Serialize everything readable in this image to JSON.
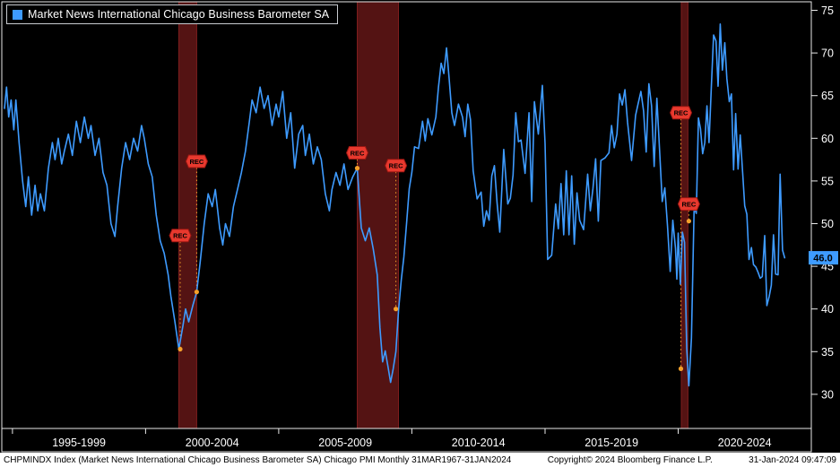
{
  "colors": {
    "background": "#000000",
    "line": "#3e9bff",
    "recession_band": "#541313",
    "recession_edge": "#7e1d1d",
    "flag_fill": "#e8392e",
    "flag_stroke": "#9c1712",
    "flag_text": "#000000",
    "dot": "#f5a02a",
    "dotted_line": "#f5a02a",
    "axis_text": "#ffffff",
    "frame": "#e8e8e8",
    "badge_bg": "#3e9bff",
    "badge_text": "#000000",
    "footer_bg": "#ffffff",
    "footer_text": "#000000"
  },
  "legend": {
    "label": "Market News International Chicago Business Barometer SA",
    "swatch_color": "#3e9bff"
  },
  "y_axis": {
    "ticks": [
      30,
      35,
      40,
      45,
      50,
      55,
      60,
      65,
      70,
      75
    ]
  },
  "x_axis": {
    "bins": [
      "1995-1999",
      "2000-2004",
      "2005-2009",
      "2010-2014",
      "2015-2019",
      "2020-2024"
    ],
    "bin_centers": [
      1997.5,
      2002.5,
      2007.5,
      2012.5,
      2017.5,
      2022.5
    ],
    "tick_years": [
      1995,
      2000,
      2005,
      2010,
      2015,
      2020,
      2025
    ]
  },
  "last_value": {
    "label": "46.0",
    "value": 46.0
  },
  "annotation_label": "REC",
  "footer": {
    "left": "CHPMINDX Index (Market News International Chicago Business Barometer SA) Chicago PMI  Monthly 31MAR1967-31JAN2024",
    "center": "Copyright© 2024 Bloomberg Finance L.P.",
    "right": "31-Jan-2024 09:47:09"
  },
  "chart_data": {
    "type": "line",
    "title": "Market News International Chicago Business Barometer SA",
    "xlabel": "",
    "ylabel": "",
    "xlim": [
      1994.6,
      2025.0
    ],
    "ylim": [
      26,
      76
    ],
    "grid": false,
    "legend_position": "top-left",
    "series": [
      {
        "name": "CHPMINDX Index (Chicago PMI, SA, monthly)",
        "color": "#3e9bff",
        "points": [
          [
            1994.7,
            63.5
          ],
          [
            1994.78,
            66
          ],
          [
            1994.86,
            62.5
          ],
          [
            1994.95,
            64.5
          ],
          [
            1995.05,
            61
          ],
          [
            1995.13,
            64.5
          ],
          [
            1995.25,
            59.5
          ],
          [
            1995.38,
            55
          ],
          [
            1995.5,
            52
          ],
          [
            1995.6,
            55.5
          ],
          [
            1995.72,
            51
          ],
          [
            1995.85,
            54.5
          ],
          [
            1995.95,
            51.5
          ],
          [
            1996.05,
            53.5
          ],
          [
            1996.2,
            51.5
          ],
          [
            1996.35,
            56.5
          ],
          [
            1996.5,
            59.5
          ],
          [
            1996.6,
            57.5
          ],
          [
            1996.72,
            60
          ],
          [
            1996.85,
            57
          ],
          [
            1996.95,
            58.5
          ],
          [
            1997.1,
            60.5
          ],
          [
            1997.25,
            58
          ],
          [
            1997.4,
            62
          ],
          [
            1997.55,
            59.5
          ],
          [
            1997.7,
            62.5
          ],
          [
            1997.85,
            60
          ],
          [
            1997.95,
            61.5
          ],
          [
            1998.1,
            58
          ],
          [
            1998.25,
            60
          ],
          [
            1998.4,
            56
          ],
          [
            1998.55,
            54.5
          ],
          [
            1998.7,
            50
          ],
          [
            1998.85,
            48.5
          ],
          [
            1998.95,
            52
          ],
          [
            1999.1,
            56.5
          ],
          [
            1999.25,
            59.5
          ],
          [
            1999.4,
            57.5
          ],
          [
            1999.55,
            60
          ],
          [
            1999.7,
            58.5
          ],
          [
            1999.85,
            61.5
          ],
          [
            1999.95,
            60
          ],
          [
            2000.1,
            57
          ],
          [
            2000.25,
            55.5
          ],
          [
            2000.4,
            51
          ],
          [
            2000.55,
            48
          ],
          [
            2000.7,
            46.5
          ],
          [
            2000.85,
            44
          ],
          [
            2000.95,
            41.5
          ],
          [
            2001.1,
            38.5
          ],
          [
            2001.25,
            35.3
          ],
          [
            2001.4,
            38
          ],
          [
            2001.5,
            40
          ],
          [
            2001.62,
            38.5
          ],
          [
            2001.78,
            40.5
          ],
          [
            2001.92,
            42
          ],
          [
            2002.05,
            45.5
          ],
          [
            2002.2,
            50
          ],
          [
            2002.35,
            53.5
          ],
          [
            2002.5,
            52
          ],
          [
            2002.62,
            54
          ],
          [
            2002.78,
            49.5
          ],
          [
            2002.9,
            47.5
          ],
          [
            2003.0,
            50
          ],
          [
            2003.15,
            48.5
          ],
          [
            2003.3,
            52
          ],
          [
            2003.45,
            54
          ],
          [
            2003.6,
            56
          ],
          [
            2003.75,
            58.5
          ],
          [
            2003.9,
            62
          ],
          [
            2004.0,
            64.5
          ],
          [
            2004.15,
            63
          ],
          [
            2004.3,
            66
          ],
          [
            2004.45,
            63.5
          ],
          [
            2004.6,
            65
          ],
          [
            2004.75,
            61.5
          ],
          [
            2004.9,
            64
          ],
          [
            2005.0,
            62.5
          ],
          [
            2005.15,
            65.5
          ],
          [
            2005.3,
            60
          ],
          [
            2005.45,
            63
          ],
          [
            2005.6,
            56.5
          ],
          [
            2005.75,
            60.5
          ],
          [
            2005.9,
            61.5
          ],
          [
            2006.0,
            58
          ],
          [
            2006.15,
            60.5
          ],
          [
            2006.3,
            57
          ],
          [
            2006.45,
            59
          ],
          [
            2006.6,
            57.5
          ],
          [
            2006.75,
            53.5
          ],
          [
            2006.9,
            51.5
          ],
          [
            2007.0,
            54
          ],
          [
            2007.15,
            56
          ],
          [
            2007.3,
            54.5
          ],
          [
            2007.45,
            57
          ],
          [
            2007.6,
            54
          ],
          [
            2007.78,
            55.5
          ],
          [
            2007.95,
            56.5
          ],
          [
            2008.1,
            49.5
          ],
          [
            2008.25,
            48
          ],
          [
            2008.4,
            49.5
          ],
          [
            2008.55,
            47
          ],
          [
            2008.7,
            44
          ],
          [
            2008.8,
            37.8
          ],
          [
            2008.9,
            33.8
          ],
          [
            2009.0,
            35.1
          ],
          [
            2009.1,
            33.3
          ],
          [
            2009.2,
            31.4
          ],
          [
            2009.3,
            33
          ],
          [
            2009.4,
            35
          ],
          [
            2009.5,
            39.9
          ],
          [
            2009.6,
            43.4
          ],
          [
            2009.7,
            46.1
          ],
          [
            2009.8,
            50
          ],
          [
            2009.9,
            54.1
          ],
          [
            2010.0,
            56
          ],
          [
            2010.1,
            59
          ],
          [
            2010.25,
            58.8
          ],
          [
            2010.4,
            62
          ],
          [
            2010.5,
            59.7
          ],
          [
            2010.6,
            62.3
          ],
          [
            2010.75,
            60.4
          ],
          [
            2010.9,
            62.5
          ],
          [
            2011.0,
            66
          ],
          [
            2011.1,
            68.8
          ],
          [
            2011.2,
            67.6
          ],
          [
            2011.3,
            70.6
          ],
          [
            2011.4,
            67
          ],
          [
            2011.5,
            63
          ],
          [
            2011.6,
            61.5
          ],
          [
            2011.75,
            64
          ],
          [
            2011.9,
            62.5
          ],
          [
            2012.0,
            60.2
          ],
          [
            2012.1,
            64
          ],
          [
            2012.2,
            62.2
          ],
          [
            2012.3,
            56.2
          ],
          [
            2012.45,
            52.9
          ],
          [
            2012.6,
            53.7
          ],
          [
            2012.7,
            49.7
          ],
          [
            2012.8,
            51.5
          ],
          [
            2012.9,
            50.4
          ],
          [
            2013.0,
            55.6
          ],
          [
            2013.1,
            56.8
          ],
          [
            2013.2,
            52.4
          ],
          [
            2013.3,
            49
          ],
          [
            2013.45,
            58.7
          ],
          [
            2013.6,
            52.3
          ],
          [
            2013.7,
            53
          ],
          [
            2013.8,
            55.7
          ],
          [
            2013.9,
            63
          ],
          [
            2014.0,
            59.6
          ],
          [
            2014.1,
            59.8
          ],
          [
            2014.25,
            55.9
          ],
          [
            2014.4,
            63
          ],
          [
            2014.5,
            52.6
          ],
          [
            2014.6,
            64.3
          ],
          [
            2014.75,
            60.5
          ],
          [
            2014.9,
            66.2
          ],
          [
            2015.0,
            59.4
          ],
          [
            2015.1,
            45.8
          ],
          [
            2015.25,
            46.3
          ],
          [
            2015.4,
            52.3
          ],
          [
            2015.5,
            49.4
          ],
          [
            2015.6,
            54.7
          ],
          [
            2015.7,
            48.7
          ],
          [
            2015.8,
            56.2
          ],
          [
            2015.9,
            48.7
          ],
          [
            2016.0,
            55.6
          ],
          [
            2016.1,
            47.6
          ],
          [
            2016.2,
            53.6
          ],
          [
            2016.3,
            50.4
          ],
          [
            2016.45,
            49.3
          ],
          [
            2016.6,
            55.8
          ],
          [
            2016.7,
            51.5
          ],
          [
            2016.8,
            54.1
          ],
          [
            2016.9,
            57.6
          ],
          [
            2017.0,
            50.3
          ],
          [
            2017.1,
            57.4
          ],
          [
            2017.25,
            57.7
          ],
          [
            2017.4,
            58.3
          ],
          [
            2017.5,
            61.5
          ],
          [
            2017.6,
            58.9
          ],
          [
            2017.7,
            60.5
          ],
          [
            2017.8,
            65.2
          ],
          [
            2017.9,
            63.9
          ],
          [
            2018.0,
            65.7
          ],
          [
            2018.1,
            61.9
          ],
          [
            2018.25,
            57.4
          ],
          [
            2018.4,
            62.7
          ],
          [
            2018.5,
            64.1
          ],
          [
            2018.6,
            65.5
          ],
          [
            2018.7,
            63.2
          ],
          [
            2018.8,
            58.4
          ],
          [
            2018.9,
            66.4
          ],
          [
            2019.0,
            63.8
          ],
          [
            2019.1,
            56.7
          ],
          [
            2019.2,
            64.7
          ],
          [
            2019.3,
            58.7
          ],
          [
            2019.4,
            52.6
          ],
          [
            2019.5,
            54.2
          ],
          [
            2019.6,
            49.7
          ],
          [
            2019.7,
            44.4
          ],
          [
            2019.8,
            50.4
          ],
          [
            2019.9,
            47.1
          ],
          [
            2019.95,
            43.5
          ],
          [
            2020.0,
            48.9
          ],
          [
            2020.08,
            42.9
          ],
          [
            2020.16,
            49
          ],
          [
            2020.24,
            47.8
          ],
          [
            2020.32,
            35.4
          ],
          [
            2020.4,
            31.0
          ],
          [
            2020.5,
            36.6
          ],
          [
            2020.6,
            51.9
          ],
          [
            2020.68,
            51.2
          ],
          [
            2020.76,
            62.4
          ],
          [
            2020.84,
            61.1
          ],
          [
            2020.92,
            58.2
          ],
          [
            2021.0,
            59.5
          ],
          [
            2021.08,
            63.8
          ],
          [
            2021.16,
            59.5
          ],
          [
            2021.25,
            66.3
          ],
          [
            2021.33,
            72.1
          ],
          [
            2021.42,
            71.4
          ],
          [
            2021.5,
            66.1
          ],
          [
            2021.58,
            73.4
          ],
          [
            2021.66,
            68
          ],
          [
            2021.75,
            71.2
          ],
          [
            2021.83,
            67
          ],
          [
            2021.92,
            64.3
          ],
          [
            2022.0,
            65.2
          ],
          [
            2022.08,
            56.3
          ],
          [
            2022.16,
            62.9
          ],
          [
            2022.25,
            56.4
          ],
          [
            2022.33,
            60.4
          ],
          [
            2022.42,
            56
          ],
          [
            2022.5,
            52.1
          ],
          [
            2022.58,
            51.1
          ],
          [
            2022.66,
            45.8
          ],
          [
            2022.75,
            47.2
          ],
          [
            2022.83,
            45.2
          ],
          [
            2022.92,
            44.9
          ],
          [
            2023.0,
            44.3
          ],
          [
            2023.08,
            43.6
          ],
          [
            2023.16,
            43.8
          ],
          [
            2023.25,
            48.6
          ],
          [
            2023.33,
            40.4
          ],
          [
            2023.42,
            41.5
          ],
          [
            2023.5,
            42.8
          ],
          [
            2023.58,
            48.7
          ],
          [
            2023.66,
            44.1
          ],
          [
            2023.75,
            44.0
          ],
          [
            2023.83,
            55.8
          ],
          [
            2023.92,
            46.9
          ],
          [
            2024.0,
            46.0
          ]
        ]
      }
    ],
    "recession_bands": [
      {
        "start": 2001.25,
        "end": 2001.92
      },
      {
        "start": 2007.95,
        "end": 2009.5
      },
      {
        "start": 2020.12,
        "end": 2020.37
      }
    ],
    "rec_flags": [
      {
        "x": 2001.3,
        "flag_value": 48.6,
        "dot_value": 35.3
      },
      {
        "x": 2001.92,
        "flag_value": 57.3,
        "dot_value": 42.0
      },
      {
        "x": 2007.95,
        "flag_value": 58.3,
        "dot_value": 56.5
      },
      {
        "x": 2009.4,
        "flag_value": 56.8,
        "dot_value": 40.0
      },
      {
        "x": 2020.1,
        "flag_value": 63.0,
        "dot_value": 33.0
      },
      {
        "x": 2020.4,
        "flag_value": 52.3,
        "dot_value": 50.3
      }
    ]
  }
}
